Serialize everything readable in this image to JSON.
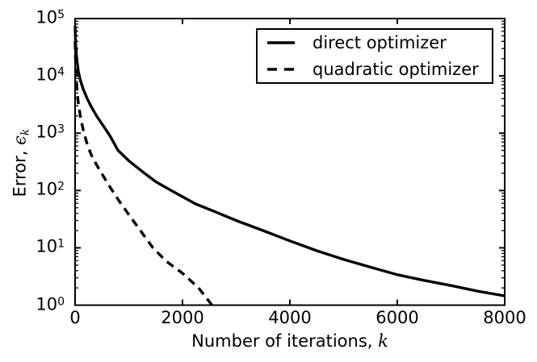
{
  "colors": {
    "foreground": "#000000",
    "background": "#ffffff"
  },
  "chart_data": {
    "type": "line",
    "title": "",
    "xlabel": "Number of iterations, k",
    "ylabel": "Error, ϵ_k",
    "xlabel_parts": {
      "prefix": "Number of iterations, ",
      "variable": "k"
    },
    "ylabel_parts": {
      "prefix": "Error, ",
      "variable": "ϵ",
      "subscript": "k"
    },
    "x_scale": "linear",
    "y_scale": "log",
    "xlim": [
      0,
      8000
    ],
    "ylim_log10": [
      0,
      5
    ],
    "grid": false,
    "legend_position": "upper right",
    "x_ticks": [
      {
        "value": 0,
        "label": "0"
      },
      {
        "value": 2000,
        "label": "2000"
      },
      {
        "value": 4000,
        "label": "4000"
      },
      {
        "value": 6000,
        "label": "6000"
      },
      {
        "value": 8000,
        "label": "8000"
      }
    ],
    "y_ticks": [
      {
        "base": "10",
        "exponent": 5
      },
      {
        "base": "10",
        "exponent": 4
      },
      {
        "base": "10",
        "exponent": 3
      },
      {
        "base": "10",
        "exponent": 2
      },
      {
        "base": "10",
        "exponent": 1
      },
      {
        "base": "10",
        "exponent": 0
      }
    ],
    "series": [
      {
        "name": "direct optimizer",
        "style": "solid",
        "color": "#000000",
        "points": [
          [
            0,
            75000
          ],
          [
            10,
            35000
          ],
          [
            30,
            20000
          ],
          [
            60,
            12000
          ],
          [
            100,
            8200
          ],
          [
            150,
            5900
          ],
          [
            225,
            4000
          ],
          [
            300,
            2900
          ],
          [
            400,
            2000
          ],
          [
            500,
            1450
          ],
          [
            650,
            900
          ],
          [
            800,
            500
          ],
          [
            1000,
            330
          ],
          [
            1250,
            215
          ],
          [
            1500,
            143
          ],
          [
            1750,
            105
          ],
          [
            2000,
            78
          ],
          [
            2250,
            58
          ],
          [
            2600,
            43
          ],
          [
            3000,
            30
          ],
          [
            3500,
            20
          ],
          [
            4000,
            13.2
          ],
          [
            4500,
            8.9
          ],
          [
            5000,
            6.3
          ],
          [
            5500,
            4.6
          ],
          [
            6000,
            3.4
          ],
          [
            6500,
            2.7
          ],
          [
            7000,
            2.2
          ],
          [
            7500,
            1.75
          ],
          [
            8000,
            1.45
          ]
        ]
      },
      {
        "name": "quadratic optimizer",
        "style": "dashed",
        "color": "#000000",
        "points": [
          [
            0,
            40000
          ],
          [
            10,
            15000
          ],
          [
            30,
            6500
          ],
          [
            60,
            3300
          ],
          [
            100,
            1900
          ],
          [
            150,
            1150
          ],
          [
            225,
            640
          ],
          [
            300,
            420
          ],
          [
            400,
            280
          ],
          [
            500,
            195
          ],
          [
            650,
            115
          ],
          [
            800,
            70
          ],
          [
            1000,
            38
          ],
          [
            1200,
            21
          ],
          [
            1450,
            10
          ],
          [
            1700,
            5.8
          ],
          [
            2000,
            3.6
          ],
          [
            2300,
            2.0
          ],
          [
            2550,
            1.0
          ]
        ]
      }
    ]
  }
}
